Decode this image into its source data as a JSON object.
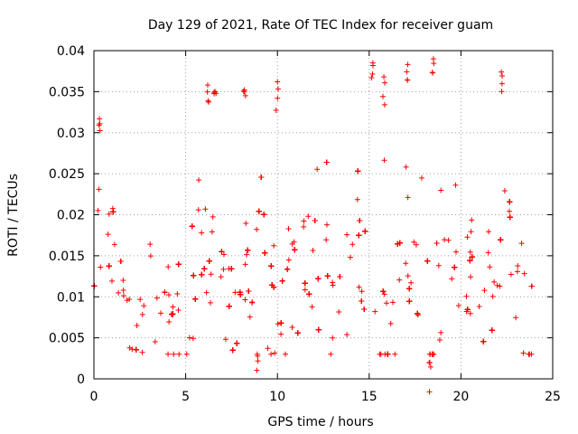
{
  "chart_data": {
    "type": "scatter",
    "title": "Day 129 of 2021, Rate Of TEC Index for receiver guam",
    "xlabel": "GPS time / hours",
    "ylabel": "ROTI / TECUs",
    "xlim": [
      0,
      25
    ],
    "ylim": [
      0,
      0.04
    ],
    "x_ticks": [
      0,
      5,
      10,
      15,
      20,
      25
    ],
    "y_ticks": [
      0,
      0.005,
      0.01,
      0.015,
      0.02,
      0.025,
      0.03,
      0.035,
      0.04
    ],
    "x_tick_labels": [
      "0",
      "5",
      "10",
      "15",
      "20",
      "25"
    ],
    "y_tick_labels": [
      "0",
      "0.005",
      "0.01",
      "0.015",
      "0.02",
      "0.025",
      "0.03",
      "0.035",
      "0.04"
    ],
    "grid": true,
    "marker": "+",
    "color": "#ff0000",
    "series": [
      {
        "name": "ROTI",
        "x_range": [
          0,
          24
        ],
        "typical_range": [
          0.003,
          0.025
        ],
        "notable_points": [
          {
            "x": 0.3,
            "y": 0.0317
          },
          {
            "x": 6.2,
            "y": 0.0358
          },
          {
            "x": 6.6,
            "y": 0.035
          },
          {
            "x": 8.2,
            "y": 0.0352
          },
          {
            "x": 10.0,
            "y": 0.0362
          },
          {
            "x": 15.2,
            "y": 0.0385
          },
          {
            "x": 15.8,
            "y": 0.0368
          },
          {
            "x": 17.1,
            "y": 0.0383
          },
          {
            "x": 18.5,
            "y": 0.039
          },
          {
            "x": 22.2,
            "y": 0.0374
          },
          {
            "x": 8.9,
            "y": 0.003
          },
          {
            "x": 18.3,
            "y": 0.002
          }
        ]
      }
    ]
  }
}
